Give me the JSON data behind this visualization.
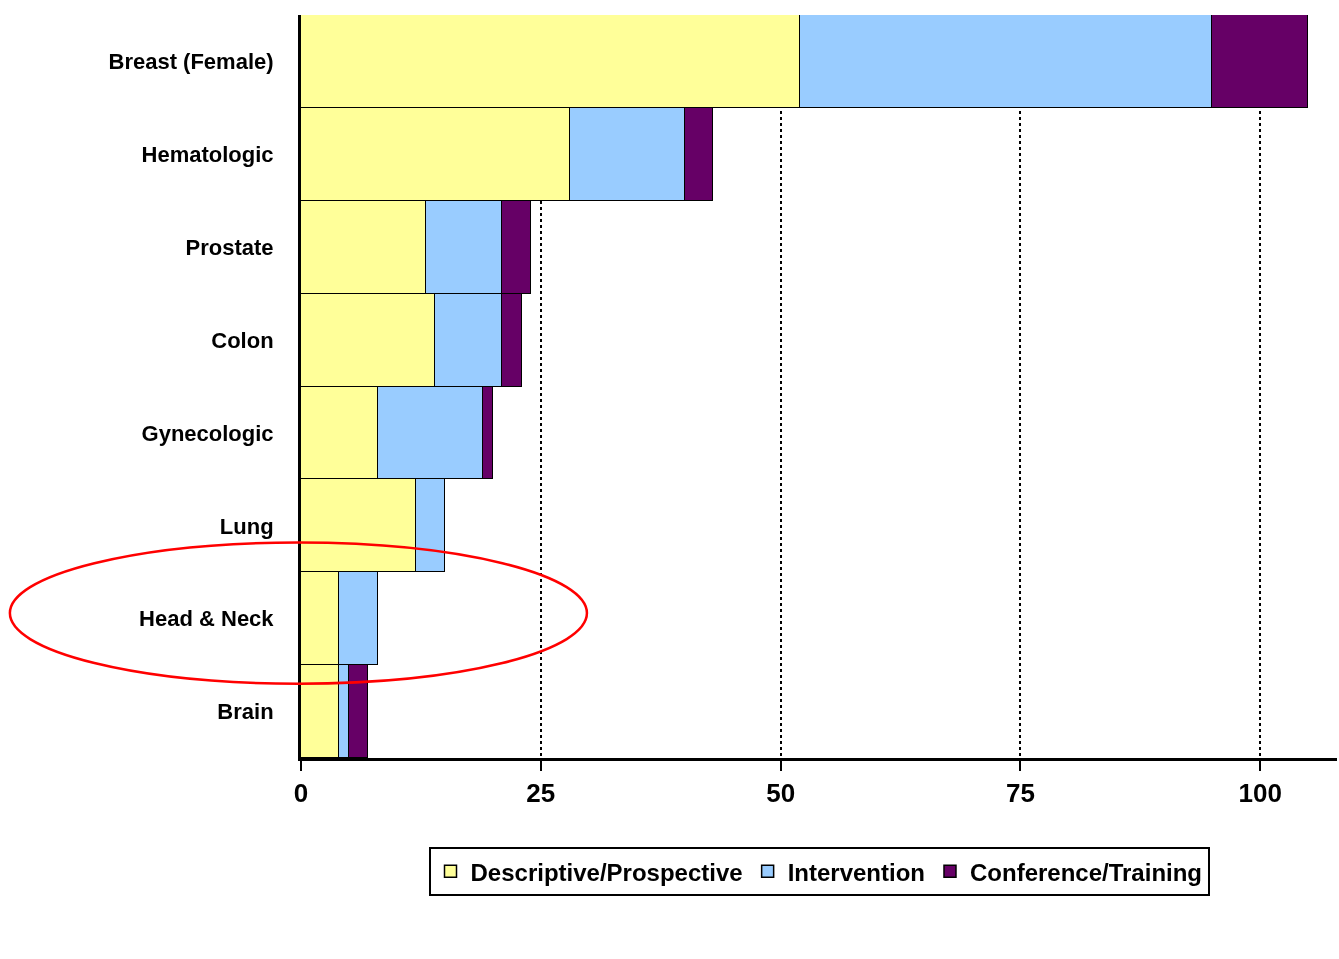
{
  "chart_data": {
    "type": "bar",
    "orientation": "horizontal",
    "stacked": true,
    "categories": [
      "Breast (Female)",
      "Hematologic",
      "Prostate",
      "Colon",
      "Gynecologic",
      "Lung",
      "Head & Neck",
      "Brain"
    ],
    "series": [
      {
        "name": "Descriptive/Prospective",
        "color": "#ffff99",
        "values": [
          52,
          28,
          13,
          14,
          8,
          12,
          4,
          4
        ]
      },
      {
        "name": "Intervention",
        "color": "#99ccff",
        "values": [
          43,
          12,
          8,
          7,
          11,
          3,
          4,
          1
        ]
      },
      {
        "name": "Conference/Training",
        "color": "#660066",
        "values": [
          10,
          3,
          3,
          2,
          1,
          null,
          null,
          2
        ]
      }
    ],
    "xlim": [
      0,
      108
    ],
    "xticks": [
      0,
      25,
      50,
      75,
      100
    ],
    "grid": "x",
    "legend": "bottom"
  }
}
